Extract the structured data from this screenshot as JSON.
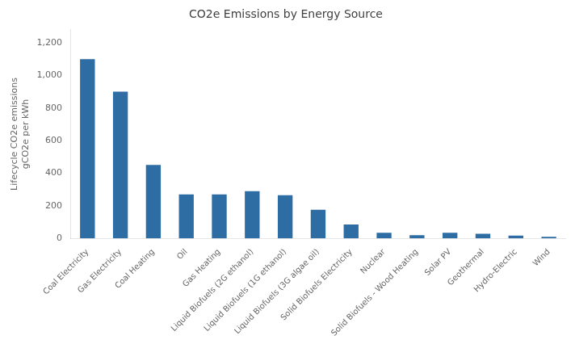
{
  "chart_data": {
    "type": "bar",
    "title": "CO2e Emissions by Energy Source",
    "ylabel": "Lifecycle CO2e emissions\ngCO2e per kWh",
    "categories": [
      "Coal Electricity",
      "Gas Electricity",
      "Coal Heating",
      "Oil",
      "Gas Heating",
      "Liquid Biofuels (2G ethanol)",
      "Liquid Biofuels (1G ethanol)",
      "Liquid Biofuels (3G algae oil)",
      "Solid Biofuels Electricity",
      "Nuclear",
      "Solid Biofuels - Wood Heating",
      "Solar PV",
      "Geothermal",
      "Hydro-Electric",
      "Wind"
    ],
    "values": [
      1100,
      900,
      450,
      270,
      270,
      290,
      265,
      175,
      85,
      35,
      20,
      35,
      28,
      17,
      10
    ],
    "color": "#2E6DA4",
    "ylim": [
      0,
      1280
    ],
    "yticks": [
      0,
      200,
      400,
      600,
      800,
      {
        "value": 1000,
        "label": "1,000"
      },
      {
        "value": 1200,
        "label": "1,200"
      }
    ],
    "grid": false
  }
}
